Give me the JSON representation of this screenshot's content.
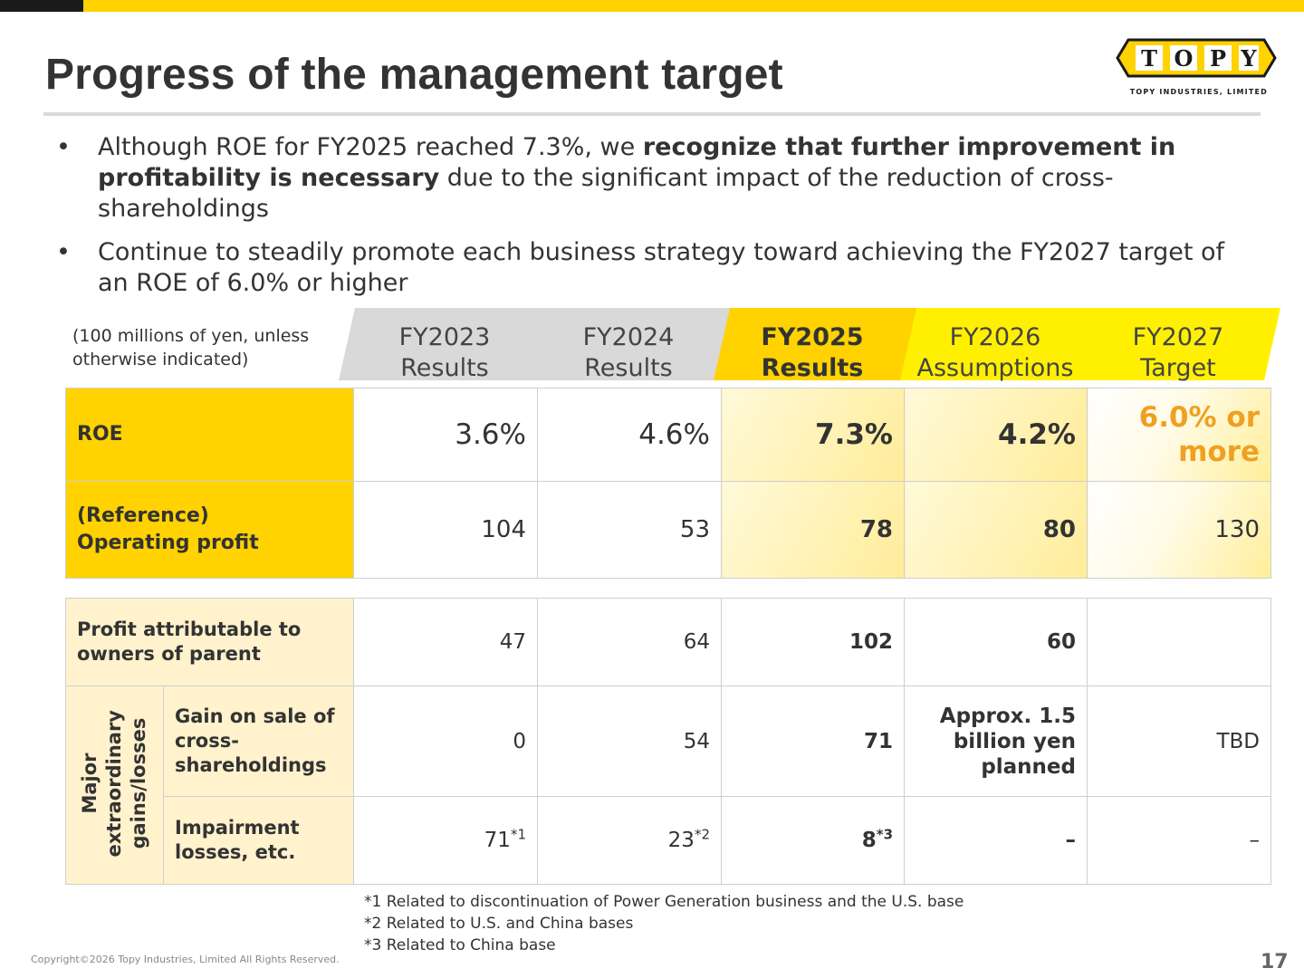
{
  "title": "Progress of the management target",
  "logo": {
    "letters": [
      "T",
      "O",
      "P",
      "Y"
    ],
    "tagline": "TOPY INDUSTRIES, LIMITED"
  },
  "bullets": [
    {
      "pre": "Although ROE for FY2025 reached 7.3%, we ",
      "bold": "recognize that further improvement in profitability is necessary",
      "post": " due to the significant impact of the reduction of cross-shareholdings"
    },
    {
      "pre": "Continue to steadily promote each business strategy toward achieving the FY2027 target of an ROE of 6.0% or higher",
      "bold": "",
      "post": ""
    }
  ],
  "bullet_symbol": "•",
  "units_line1": "(100 millions of yen, unless",
  "units_line2": "otherwise indicated)",
  "columns": [
    {
      "year": "FY2023",
      "sub": "Results"
    },
    {
      "year": "FY2024",
      "sub": "Results"
    },
    {
      "year": "FY2025",
      "sub": "Results"
    },
    {
      "year": "FY2026",
      "sub": "Assumptions"
    },
    {
      "year": "FY2027",
      "sub": "Target"
    }
  ],
  "roe": {
    "label": "ROE",
    "values": [
      "3.6%",
      "4.6%",
      "7.3%",
      "4.2%"
    ],
    "target_line1": "6.0% or",
    "target_line2": "more"
  },
  "op_profit": {
    "label_line1": "(Reference)",
    "label_line2": "Operating profit",
    "values": [
      "104",
      "53",
      "78",
      "80",
      "130"
    ]
  },
  "profit_parent": {
    "label_line1": "Profit attributable to",
    "label_line2": "owners of parent",
    "values": [
      "47",
      "64",
      "102",
      "60",
      ""
    ]
  },
  "group_label": {
    "line1": "Major",
    "line2": "extraordinary",
    "line3": "gains/losses"
  },
  "gain_sale": {
    "label_line1": "Gain on sale of",
    "label_line2": "cross-",
    "label_line3": "shareholdings",
    "values": [
      "0",
      "54",
      "71"
    ],
    "fy2026_line1": "Approx. 1.5",
    "fy2026_line2": "billion yen",
    "fy2026_line3": "planned",
    "fy2027": "TBD"
  },
  "impairment": {
    "label_line1": "Impairment",
    "label_line2": "losses, etc.",
    "values": [
      "71",
      "23",
      "8"
    ],
    "marks": [
      "*1",
      "*2",
      "*3"
    ],
    "fy2026": "–",
    "fy2027": "–"
  },
  "notes": [
    "*1 Related to discontinuation of Power Generation business and the U.S. base",
    "*2 Related to U.S. and China bases",
    "*3 Related to China base"
  ],
  "copyright": "Copyright©2026 Topy Industries, Limited All Rights Reserved.",
  "page_number": "17",
  "colors": {
    "brand_yellow": "#ffd200",
    "light_yellow": "#fff000",
    "target_orange": "#f0a020",
    "label_cream": "#fff2cc"
  }
}
